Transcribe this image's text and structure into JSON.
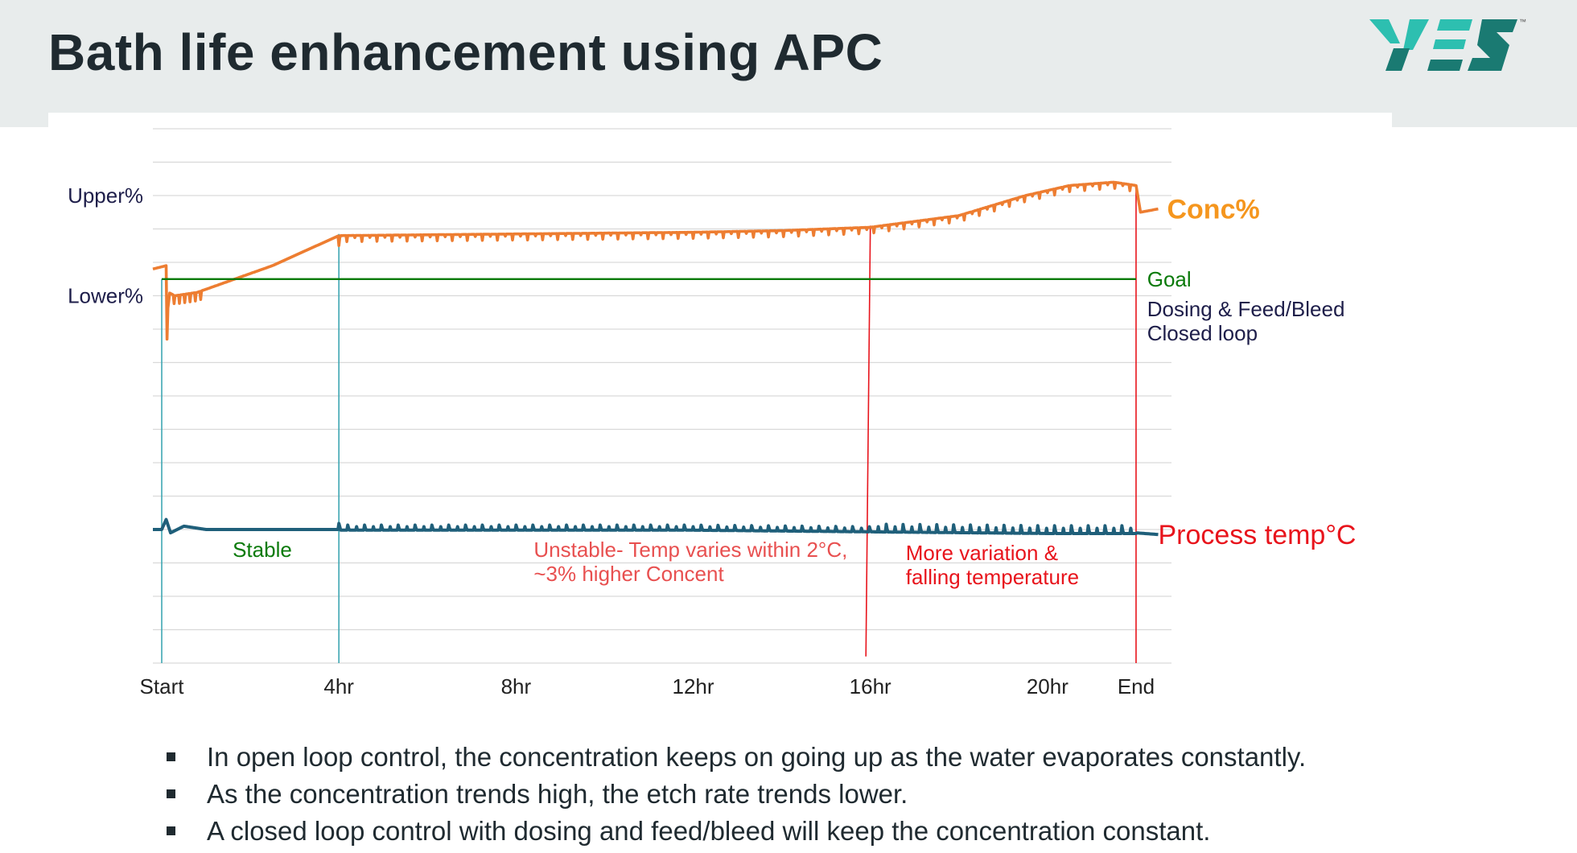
{
  "title": "Bath life enhancement using APC",
  "logo": {
    "name": "YES",
    "tm": "™"
  },
  "colors": {
    "conc": "#ed7d31",
    "temp": "#1f5f7a",
    "goal": "#0a7a0a",
    "red": "#e8141c",
    "teal_line": "#3fa7b3",
    "grid": "#d9d9d9",
    "dark_text": "#1e1e4a",
    "label_orange": "#f5961e",
    "logo_teal": "#2dbfb0",
    "logo_dark": "#1a7a72"
  },
  "bullets": [
    "In open loop control, the concentration keeps on going up as the water evaporates constantly.",
    "As the concentration trends high, the etch rate trends lower.",
    "A closed loop control with dosing and feed/bleed will keep the concentration constant."
  ],
  "chart_data": {
    "type": "line",
    "x_unit": "hr",
    "xlim": [
      -0.2,
      22.8
    ],
    "ylim": [
      0,
      16
    ],
    "x_tick_labels": [
      {
        "label": "Start",
        "x": 0
      },
      {
        "label": "4hr",
        "x": 4
      },
      {
        "label": "8hr",
        "x": 8
      },
      {
        "label": "12hr",
        "x": 12
      },
      {
        "label": "16hr",
        "x": 16
      },
      {
        "label": "20hr",
        "x": 20
      },
      {
        "label": "End",
        "x": 22
      }
    ],
    "y_tick_labels": [
      {
        "label": "Upper%",
        "y": 14
      },
      {
        "label": "Lower%",
        "y": 11
      }
    ],
    "grid": true,
    "gridline_count": 17,
    "series": [
      {
        "name": "Conc%",
        "color": "#ed7d31",
        "sawtooth": true,
        "x": [
          -0.2,
          0.1,
          0.12,
          0.15,
          0.3,
          0.8,
          2.5,
          4.0,
          8.0,
          12.0,
          14.0,
          16.0,
          18.0,
          19.5,
          20.5,
          21.5,
          22.0,
          22.1,
          22.5
        ],
        "y": [
          11.8,
          11.9,
          9.7,
          11.1,
          11.0,
          11.1,
          11.9,
          12.8,
          12.85,
          12.9,
          12.95,
          13.05,
          13.4,
          14.0,
          14.3,
          14.4,
          14.3,
          13.5,
          13.6
        ],
        "amplitude": 0.3
      },
      {
        "name": "Process temp°C",
        "color": "#1f5f7a",
        "sawtooth": true,
        "x": [
          -0.2,
          0.0,
          0.1,
          0.2,
          0.5,
          1.0,
          4.0,
          8.0,
          12.0,
          16.0,
          20.0,
          22.0,
          22.5
        ],
        "y": [
          4.0,
          4.0,
          4.3,
          3.9,
          4.1,
          4.0,
          4.0,
          4.0,
          4.0,
          3.95,
          3.9,
          3.9,
          3.85
        ],
        "amplitude": 0.18
      },
      {
        "name": "Goal",
        "color": "#0a7a0a",
        "x": [
          0,
          22
        ],
        "y": [
          11.5,
          11.5
        ]
      }
    ],
    "reference_lines": [
      {
        "color": "#3fa7b3",
        "x_top": 0,
        "x_bottom": 0,
        "y_top": 11.5,
        "y_bottom": 0
      },
      {
        "color": "#3fa7b3",
        "x_top": 4,
        "x_bottom": 4,
        "y_top": 12.85,
        "y_bottom": 0
      },
      {
        "color": "#e8141c",
        "x_top": 16.0,
        "x_bottom": 15.9,
        "y_top": 13.1,
        "y_bottom": 0.2
      },
      {
        "color": "#e8141c",
        "x_top": 22.0,
        "x_bottom": 22.0,
        "y_top": 14.3,
        "y_bottom": 0
      }
    ],
    "annotations": [
      {
        "lines": [
          "Conc%"
        ],
        "color": "#f5961e",
        "size": 34,
        "bold": true,
        "x": 22.7,
        "y": 13.6
      },
      {
        "lines": [
          "Goal"
        ],
        "color": "#0a7a0a",
        "size": 26,
        "bold": false,
        "x": 22.25,
        "y": 11.5
      },
      {
        "lines": [
          "Dosing & Feed/Bleed",
          "Closed loop"
        ],
        "color": "#1e1e4a",
        "size": 26,
        "bold": false,
        "x": 22.25,
        "y": 10.6
      },
      {
        "lines": [
          "Process temp°C"
        ],
        "color": "#e8141c",
        "size": 34,
        "bold": false,
        "x": 22.5,
        "y": 3.85
      },
      {
        "lines": [
          "Stable"
        ],
        "color": "#0a7a0a",
        "size": 26,
        "bold": false,
        "x": 1.6,
        "y": 3.4
      },
      {
        "lines": [
          "Unstable- Temp varies within 2°C,",
          "~3% higher Concent"
        ],
        "color": "#e85050",
        "size": 26,
        "bold": false,
        "x": 8.4,
        "y": 3.4
      },
      {
        "lines": [
          "More variation &",
          "falling temperature"
        ],
        "color": "#e8141c",
        "size": 26,
        "bold": false,
        "x": 16.8,
        "y": 3.3
      }
    ]
  }
}
